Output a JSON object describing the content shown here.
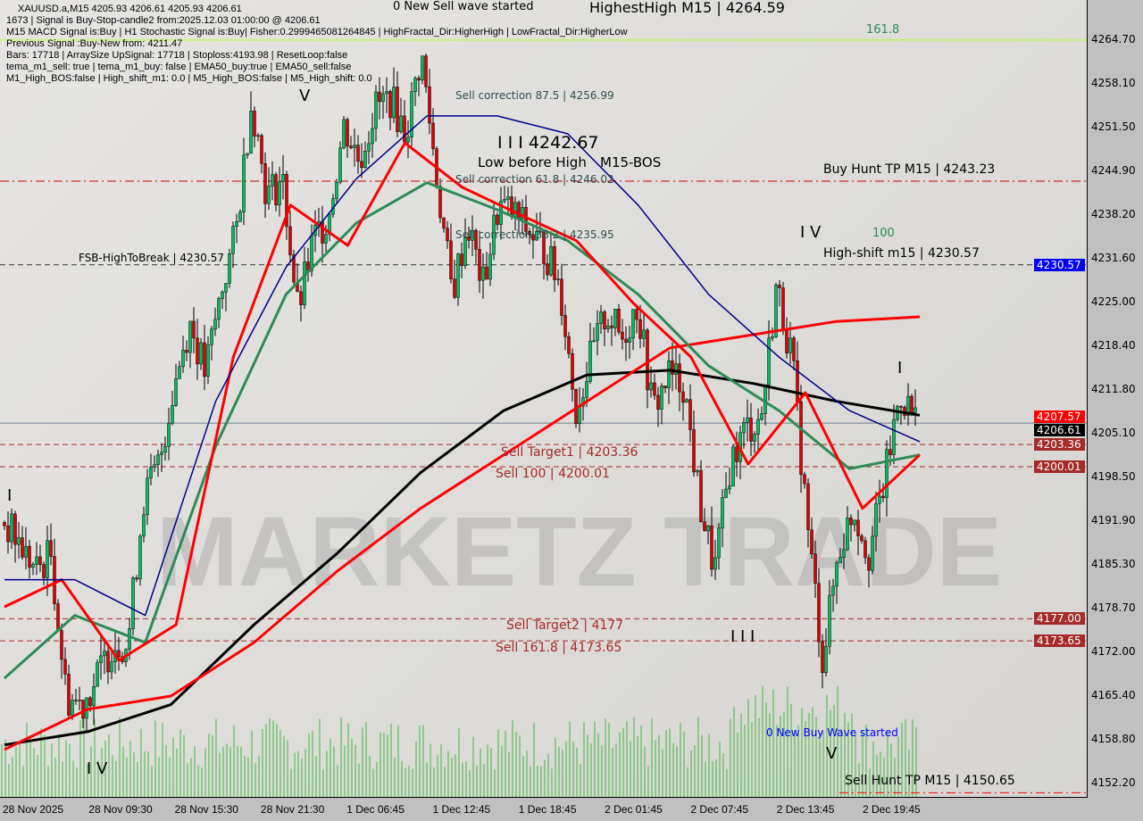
{
  "header": {
    "symbol_line": "XAUUSD.a,M15  4205.93 4206.61 4205.93 4206.61",
    "info_lines": [
      "1673 | Signal is Buy-Stop-candle2 from:2025.12.03 01:00:00 @ 4206.61",
      "M15 MACD Signal is:Buy | H1 Stochastic Signal is:Buy| Fisher:0.2999465081264845 | HighFractal_Dir:HigherHigh | LowFractal_Dir:HigherLow",
      "Previous Signal :Buy-New from: 4211.47",
      "Bars: 17718 | ArraySize UpSignal: 17718 | Stoploss:4193.98 | ResetLoop:false",
      "tema_m1_sell: true | tema_m1_buy: false | EMA50_buy:true | EMA50_sell:false",
      "M1_High_BOS:false | High_shift_m1: 0.0 | M5_High_BOS:false | M5_High_shift: 0.0"
    ]
  },
  "watermark": "MARKETZ TRADE",
  "annotations": {
    "new_sell_wave": "0 New Sell wave started",
    "new_buy_wave": "0 New Buy Wave started",
    "highest_high": "HighestHigh   M15 | 4264.59",
    "fib_161": "161.8",
    "fib_100": "100",
    "sell_corr_875": "Sell correction 87.5 | 4256.99",
    "sell_corr_618": "Sell correction 61.8 | 4246.02",
    "sell_corr_382": "Sell correction 38.2 | 4235.95",
    "wave3_price": "I I I 4242.67",
    "low_before_high": "Low before High",
    "m15_bos": "M15-BOS",
    "buy_hunt_tp": "Buy Hunt TP M15 | 4243.23",
    "high_shift": "High-shift m15 | 4230.57",
    "fsb_high": "FSB-HighToBreak | 4230.57",
    "sell_target1": "Sell Target1 | 4203.36",
    "sell_100": "Sell 100 | 4200.01",
    "sell_target2": "Sell Target2 | 4177",
    "sell_1618": "Sell 161.8 | 4173.65",
    "sell_hunt_tp": "Sell Hunt TP M15 | 4150.65",
    "wave_labels": [
      "I",
      "I V",
      "V",
      "I V",
      "I I I",
      "V",
      "I"
    ]
  },
  "colors": {
    "bull": "#00c060",
    "bear": "#e00000",
    "ma200": "#000000",
    "ma100": "#ff0000",
    "ema50": "#2e8b57",
    "fast": "#ff0000",
    "band": "#00008b",
    "volume": "#32b432",
    "level_dark_red": "#a52a2a",
    "current": "#000000",
    "high_shift": "#0000ff"
  },
  "chart_data": {
    "type": "candlestick",
    "symbol": "XAUUSD.a",
    "timeframe": "M15",
    "ylim": [
      4148.5,
      4270.5
    ],
    "y_ticks": [
      "4264.70",
      "4258.10",
      "4251.50",
      "4244.90",
      "4238.20",
      "4231.60",
      "4225.00",
      "4218.40",
      "4211.80",
      "4205.10",
      "4198.50",
      "4191.90",
      "4185.30",
      "4178.70",
      "4172.00",
      "4165.40",
      "4158.80",
      "4152.20"
    ],
    "x_ticks": [
      "28 Nov 2025",
      "28 Nov 09:30",
      "28 Nov 15:30",
      "28 Nov 21:30",
      "1 Dec 06:45",
      "1 Dec 12:45",
      "1 Dec 18:45",
      "2 Dec 01:45",
      "2 Dec 07:45",
      "2 Dec 13:45",
      "2 Dec 19:45"
    ],
    "price_path": [
      4191.6,
      4188.3,
      4184.2,
      4186.9,
      4165.3,
      4164.0,
      4168.0,
      4173.4,
      4173.4,
      4195.0,
      4200.4,
      4212.6,
      4222.0,
      4214.0,
      4226.1,
      4235.5,
      4255.8,
      4241.0,
      4243.6,
      4223.4,
      4234.2,
      4238.2,
      4251.7,
      4246.3,
      4254.4,
      4255.8,
      4250.4,
      4262.5,
      4243.6,
      4226.1,
      4236.9,
      4227.4,
      4239.6,
      4238.2,
      4235.5,
      4232.8,
      4227.4,
      4208.5,
      4216.6,
      4223.4,
      4219.3,
      4224.7,
      4208.5,
      4213.9,
      4212.6,
      4195.0,
      4184.2,
      4200.4,
      4205.8,
      4207.2,
      4227.4,
      4216.6,
      4191.6,
      4170.7,
      4186.9,
      4193.7,
      4186.9,
      4197.7,
      4211.2,
      4207.2
    ],
    "series": [
      {
        "key": "ma200",
        "values": [
          4157.9,
          4159.9,
          4164.0,
          4176.1,
          4186.9,
          4199.1,
          4208.5,
          4213.9,
          4214.6,
          4212.6,
          4209.9,
          4207.8
        ]
      },
      {
        "key": "ma100",
        "values": [
          4157.2,
          4163.3,
          4165.3,
          4173.4,
          4184.2,
          4193.7,
          4201.8,
          4209.9,
          4218.0,
          4220.0,
          4222.0,
          4222.7
        ]
      },
      {
        "key": "ema50",
        "values": [
          4168.0,
          4177.5,
          4173.4,
          4203.1,
          4226.1,
          4236.9,
          4243.0,
          4238.9,
          4234.2,
          4226.1,
          4215.3,
          4208.5,
          4199.7,
          4201.8
        ]
      },
      {
        "key": "fast",
        "values": [
          4178.8,
          4182.9,
          4170.7,
          4176.1,
          4216.6,
          4239.6,
          4233.5,
          4249.0,
          4242.3,
          4238.2,
          4234.2,
          4224.7,
          4216.6,
          4200.4,
          4211.2,
          4193.7,
          4201.8
        ]
      },
      {
        "key": "band",
        "values": [
          4182.9,
          4182.9,
          4177.5,
          4209.9,
          4230.2,
          4243.6,
          4253.1,
          4253.1,
          4250.4,
          4239.6,
          4226.1,
          4216.6,
          4208.5,
          4203.8
        ]
      }
    ],
    "levels": [
      {
        "value": 4264.59,
        "style": "solid",
        "color": "#adff2f"
      },
      {
        "value": 4243.23,
        "style": "dashdot",
        "color": "#cc0000"
      },
      {
        "value": 4230.57,
        "style": "dashed",
        "color": "#333333",
        "tag": "4230.57",
        "tag_color": "#0000ff"
      },
      {
        "value": 4207.57,
        "style": "none",
        "tag": "4207.57",
        "tag_color": "#ff0000"
      },
      {
        "value": 4206.61,
        "style": "solid",
        "color": "#708090",
        "tag": "4206.61",
        "tag_color": "#000000"
      },
      {
        "value": 4203.36,
        "style": "dashed",
        "color": "#a52a2a",
        "tag": "4203.36",
        "tag_color": "#a52a2a"
      },
      {
        "value": 4200.01,
        "style": "dashed",
        "color": "#a52a2a",
        "tag": "4200.01",
        "tag_color": "#a52a2a"
      },
      {
        "value": 4177.0,
        "style": "dashed",
        "color": "#a52a2a",
        "tag": "4177.00",
        "tag_color": "#a52a2a"
      },
      {
        "value": 4173.65,
        "style": "dashed",
        "color": "#a52a2a",
        "tag": "4173.65",
        "tag_color": "#a52a2a"
      },
      {
        "value": 4150.65,
        "style": "dashdot",
        "color": "#ff0000"
      }
    ]
  }
}
